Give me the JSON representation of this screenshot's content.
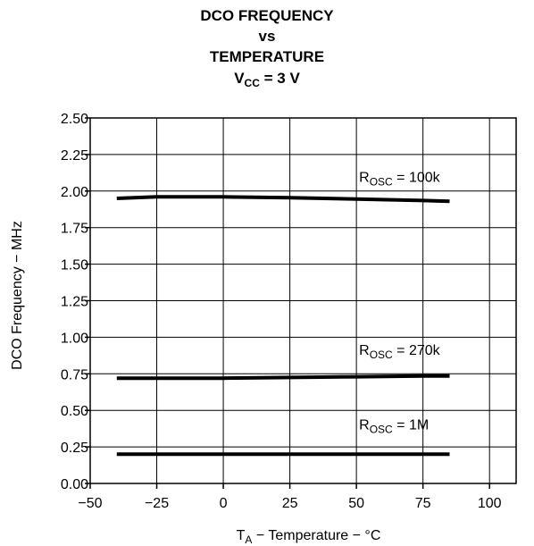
{
  "title": {
    "line1": "DCO FREQUENCY",
    "line2": "vs",
    "line3": "TEMPERATURE",
    "line4_main": "V",
    "line4_sub": "CC",
    "line4_rest": " = 3 V"
  },
  "chart_data": {
    "type": "line",
    "xlabel": {
      "prefix": "T",
      "sub": "A",
      "rest": " − Temperature − °C"
    },
    "ylabel": "DCO Frequency − MHz",
    "xlim": [
      -50,
      110
    ],
    "ylim": [
      0,
      2.5
    ],
    "x_ticks": [
      -50,
      -25,
      0,
      25,
      50,
      75,
      100
    ],
    "x_tick_labels": [
      "−50",
      "−25",
      "0",
      "25",
      "50",
      "75",
      "100"
    ],
    "y_ticks": [
      0,
      0.25,
      0.5,
      0.75,
      1.0,
      1.25,
      1.5,
      1.75,
      2.0,
      2.25,
      2.5
    ],
    "y_tick_labels": [
      "0.00",
      "0.25",
      "0.50",
      "0.75",
      "1.00",
      "1.25",
      "1.50",
      "1.75",
      "2.00",
      "2.25",
      "2.50"
    ],
    "grid": true,
    "series": [
      {
        "name": {
          "prefix": "R",
          "sub": "OSC",
          "rest": " = 100k"
        },
        "x": [
          -40,
          -25,
          0,
          25,
          50,
          75,
          85
        ],
        "y": [
          1.95,
          1.96,
          1.96,
          1.955,
          1.945,
          1.935,
          1.93
        ]
      },
      {
        "name": {
          "prefix": "R",
          "sub": "OSC",
          "rest": " = 270k"
        },
        "x": [
          -40,
          -25,
          0,
          25,
          50,
          75,
          85
        ],
        "y": [
          0.72,
          0.72,
          0.72,
          0.725,
          0.73,
          0.735,
          0.735
        ]
      },
      {
        "name": {
          "prefix": "R",
          "sub": "OSC",
          "rest": " = 1M"
        },
        "x": [
          -40,
          -25,
          0,
          25,
          50,
          75,
          85
        ],
        "y": [
          0.2,
          0.2,
          0.2,
          0.2,
          0.2,
          0.2,
          0.2
        ]
      }
    ],
    "line_color": "#000000",
    "grid_color": "#000000"
  }
}
